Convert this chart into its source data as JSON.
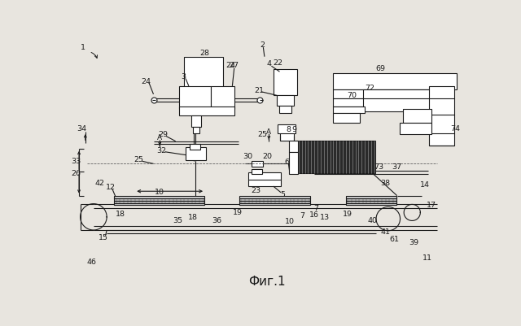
{
  "bg_color": "#e8e5df",
  "lc": "#1a1a1a",
  "fig_width": 6.4,
  "fig_height": 4.01,
  "dpi": 100,
  "title": "Фиг.1"
}
